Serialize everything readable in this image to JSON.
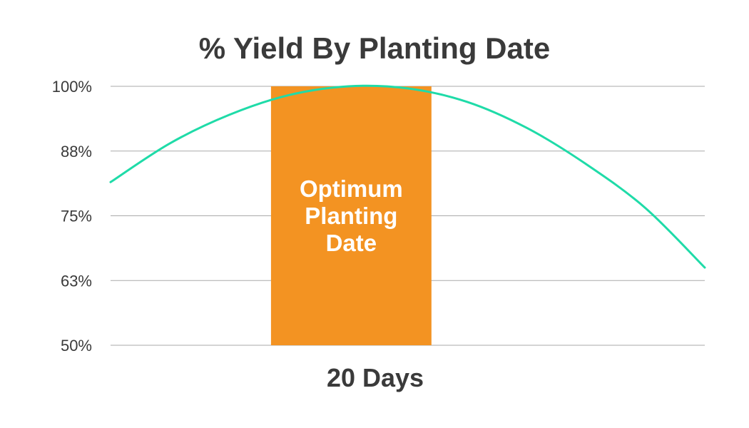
{
  "chart_data": {
    "type": "line",
    "title": "% Yield By Planting Date",
    "xlabel": "20 Days",
    "ylabel": "",
    "ylim": [
      50,
      100
    ],
    "y_ticks": [
      "100%",
      "88%",
      "75%",
      "63%",
      "50%"
    ],
    "y_tick_values": [
      100,
      88,
      75,
      63,
      50
    ],
    "grid": true,
    "band": {
      "label_lines": [
        "Optimum",
        "Planting",
        "Date"
      ],
      "x_start": 0.27,
      "x_end": 0.54,
      "color": "#F39322"
    },
    "series": [
      {
        "color": "#1FDBA8",
        "points": [
          {
            "x": 0.0,
            "y": 81.5
          },
          {
            "x": 0.1,
            "y": 89.0
          },
          {
            "x": 0.2,
            "y": 94.5
          },
          {
            "x": 0.3,
            "y": 98.3
          },
          {
            "x": 0.4,
            "y": 100.0
          },
          {
            "x": 0.5,
            "y": 99.6
          },
          {
            "x": 0.6,
            "y": 97.0
          },
          {
            "x": 0.7,
            "y": 92.0
          },
          {
            "x": 0.8,
            "y": 85.0
          },
          {
            "x": 0.9,
            "y": 76.5
          },
          {
            "x": 1.0,
            "y": 65.0
          }
        ]
      }
    ]
  },
  "colors": {
    "text": "#3a3a3a",
    "grid": "#aaaaaa",
    "band": "#F39322",
    "line": "#1FDBA8"
  }
}
